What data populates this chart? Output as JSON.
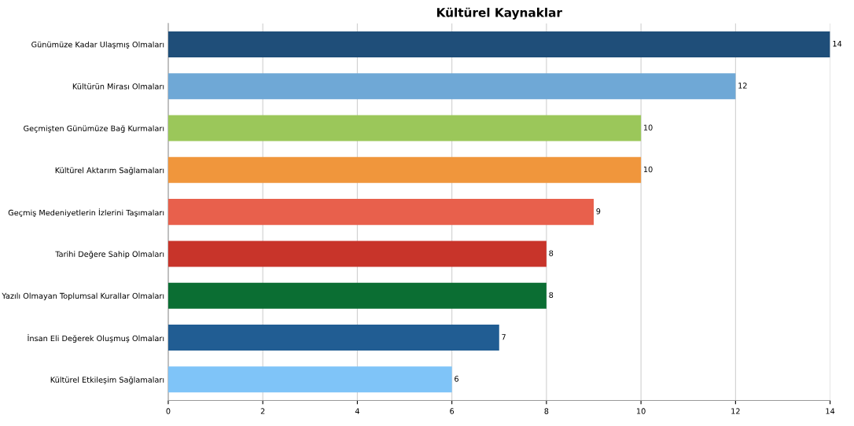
{
  "chart_data": {
    "type": "bar",
    "orientation": "horizontal",
    "title": "Kültürel Kaynaklar",
    "categories": [
      "Günümüze Kadar Ulaşmış Olmaları",
      "Kültürün Mirası Olmaları",
      "Geçmişten Günümüze Bağ Kurmaları",
      "Kültürel Aktarım Sağlamaları",
      "Geçmiş Medeniyetlerin İzlerini Taşımaları",
      "Tarihi Değere Sahip Olmaları",
      "Yazılı Olmayan Toplumsal Kurallar Olmaları",
      "İnsan Eli Değerek Oluşmuş Olmaları",
      "Kültürel Etkileşim Sağlamaları"
    ],
    "values": [
      14,
      12,
      10,
      10,
      9,
      8,
      8,
      7,
      6
    ],
    "colors": [
      "#1f4e79",
      "#6fa8d6",
      "#9bc75a",
      "#f0963c",
      "#e8604c",
      "#c8342a",
      "#0b6e33",
      "#215d93",
      "#7fc4f8"
    ],
    "xlim": [
      0,
      14
    ],
    "xticks": [
      0,
      2,
      4,
      6,
      8,
      10,
      12,
      14
    ],
    "grid": "x",
    "data_labels": true
  }
}
